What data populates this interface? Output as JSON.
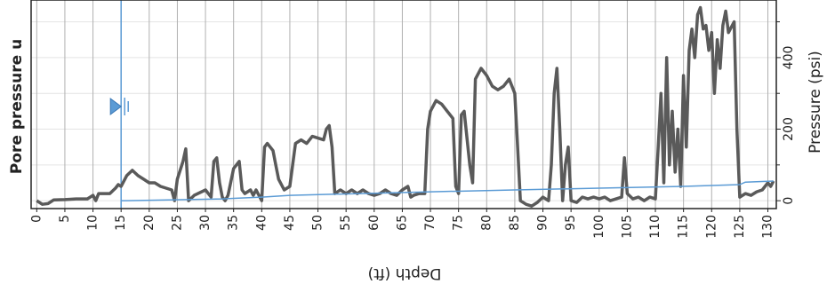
{
  "chart_data": {
    "type": "line",
    "y_label_left": "Pore pressure u",
    "y_label": "Pressure (psi)",
    "x_label": "Depth (ft)",
    "xlim": [
      -1,
      131.5
    ],
    "ylim": [
      -22,
      561
    ],
    "xticks": [
      0,
      5,
      10,
      15,
      20,
      25,
      30,
      35,
      40,
      45,
      50,
      55,
      60,
      65,
      70,
      75,
      80,
      85,
      90,
      95,
      100,
      105,
      110,
      115,
      120,
      125,
      130
    ],
    "yticks": [
      0,
      200,
      400
    ],
    "yminorticks": [
      100,
      300,
      500
    ],
    "grid": true,
    "water_table_depth": 15,
    "water_table_color": "#5b9bd5",
    "series": [
      {
        "color": "#5a5a5a",
        "x": [
          0,
          1,
          2,
          3,
          5,
          7,
          9,
          10,
          10.5,
          11,
          13,
          14,
          14.5,
          15,
          16,
          17,
          18,
          19,
          20,
          21,
          22,
          24,
          24.5,
          25,
          26,
          26.5,
          27,
          28,
          30,
          31,
          31.5,
          32,
          32.5,
          33,
          33.5,
          34,
          35,
          36,
          36.5,
          37,
          38,
          38.5,
          39,
          40,
          40.5,
          41,
          42,
          42.5,
          43,
          44,
          45,
          46,
          47,
          48,
          49,
          50,
          51,
          51.5,
          52,
          52.5,
          53,
          54,
          55,
          56,
          57,
          58,
          59,
          60,
          61,
          62,
          63,
          64,
          65,
          66,
          66.5,
          67,
          68,
          69,
          69.5,
          70,
          71,
          72,
          73,
          74,
          74.5,
          75,
          75.5,
          76,
          77,
          77.5,
          78,
          79,
          80,
          81,
          82,
          83,
          84,
          85,
          85.5,
          86,
          87,
          88,
          89,
          90,
          91,
          91.5,
          92,
          92.5,
          93,
          93.5,
          94,
          94.5,
          95,
          96,
          97,
          98,
          99,
          100,
          101,
          102,
          103,
          104,
          104.5,
          105,
          106,
          107,
          108,
          109,
          110,
          110.5,
          111,
          111.5,
          112,
          112.5,
          113,
          113.5,
          114,
          114.5,
          115,
          115.5,
          116,
          116.5,
          117,
          117.5,
          118,
          118.5,
          119,
          119.5,
          120,
          120.5,
          121,
          121.5,
          122,
          122.5,
          123,
          124,
          124.5,
          125,
          126,
          127,
          128,
          129,
          130,
          130.5,
          131
        ],
        "values": [
          0,
          -10,
          -8,
          2,
          3,
          5,
          5,
          15,
          0,
          20,
          20,
          35,
          45,
          40,
          70,
          85,
          70,
          60,
          50,
          50,
          40,
          30,
          0,
          60,
          110,
          145,
          0,
          15,
          30,
          10,
          110,
          120,
          50,
          10,
          0,
          15,
          90,
          110,
          30,
          20,
          30,
          15,
          30,
          0,
          150,
          160,
          140,
          100,
          60,
          30,
          40,
          160,
          170,
          160,
          180,
          175,
          170,
          200,
          210,
          150,
          20,
          30,
          20,
          30,
          20,
          30,
          20,
          15,
          20,
          30,
          20,
          15,
          30,
          40,
          10,
          15,
          20,
          20,
          200,
          250,
          280,
          270,
          250,
          230,
          40,
          20,
          240,
          250,
          100,
          50,
          340,
          370,
          350,
          320,
          310,
          320,
          340,
          300,
          150,
          0,
          -10,
          -15,
          -5,
          10,
          0,
          100,
          300,
          370,
          200,
          0,
          100,
          150,
          0,
          -5,
          10,
          5,
          10,
          5,
          10,
          0,
          5,
          10,
          120,
          20,
          5,
          10,
          0,
          10,
          5,
          150,
          300,
          50,
          400,
          100,
          250,
          80,
          200,
          40,
          350,
          150,
          420,
          480,
          400,
          520,
          540,
          480,
          490,
          420,
          470,
          300,
          450,
          370,
          490,
          530,
          470,
          500,
          200,
          10,
          20,
          15,
          25,
          30,
          50,
          40,
          55
        ]
      },
      {
        "color": "#5b9bd5",
        "x": [
          15,
          16,
          33,
          40,
          45,
          70,
          85,
          100,
          115,
          125,
          126,
          131
        ],
        "values": [
          0,
          0,
          5,
          10,
          15,
          25,
          30,
          35,
          40,
          45,
          52,
          55
        ]
      }
    ]
  }
}
